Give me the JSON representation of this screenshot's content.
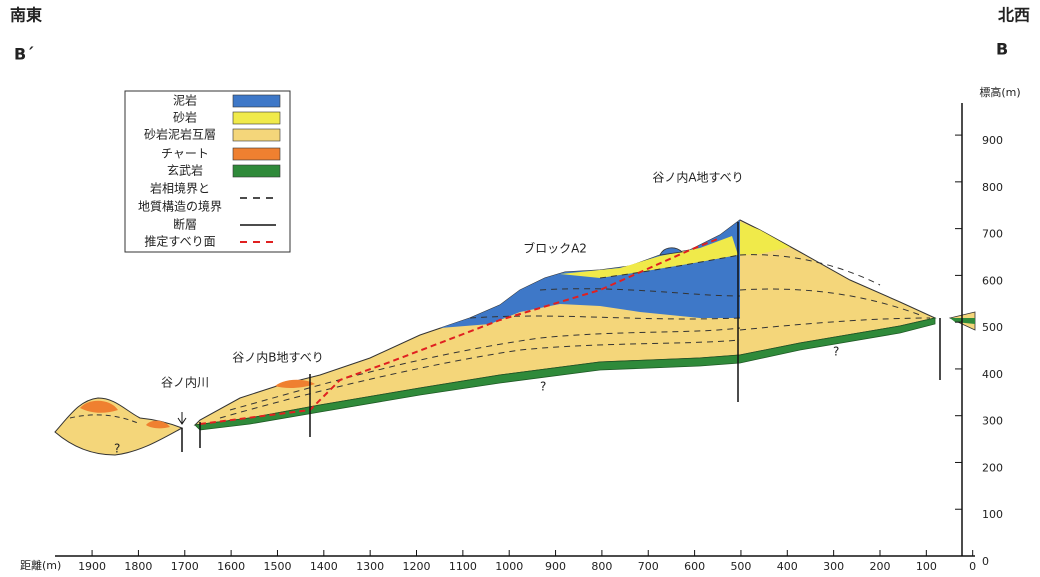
{
  "header": {
    "left": "南東",
    "right": "北西",
    "left_point": "B´",
    "right_point": "B"
  },
  "legend": [
    "泥岩",
    "砂岩",
    "砂岩泥岩互層",
    "チャート",
    "玄武岩",
    "岩相境界と",
    "地質構造の境界",
    "断層",
    "推定すべり面"
  ],
  "annotations": {
    "landslide_a": "谷ノ内A地すべり",
    "block": "ブロックA2",
    "landslide_b": "谷ノ内B地すべり",
    "river": "谷ノ内川",
    "unknown": "?"
  },
  "axes": {
    "x": {
      "label": "距離(m)",
      "lim": [
        1980,
        -5
      ],
      "ticks": [
        1900,
        1800,
        1700,
        1600,
        1500,
        1400,
        1300,
        1200,
        1100,
        1000,
        900,
        800,
        700,
        600,
        500,
        400,
        300,
        200,
        100,
        0
      ]
    },
    "y": {
      "label": "標高(m)",
      "lim": [
        0,
        990
      ],
      "ticks": [
        0,
        100,
        200,
        300,
        400,
        500,
        600,
        700,
        800,
        900
      ]
    }
  }
}
